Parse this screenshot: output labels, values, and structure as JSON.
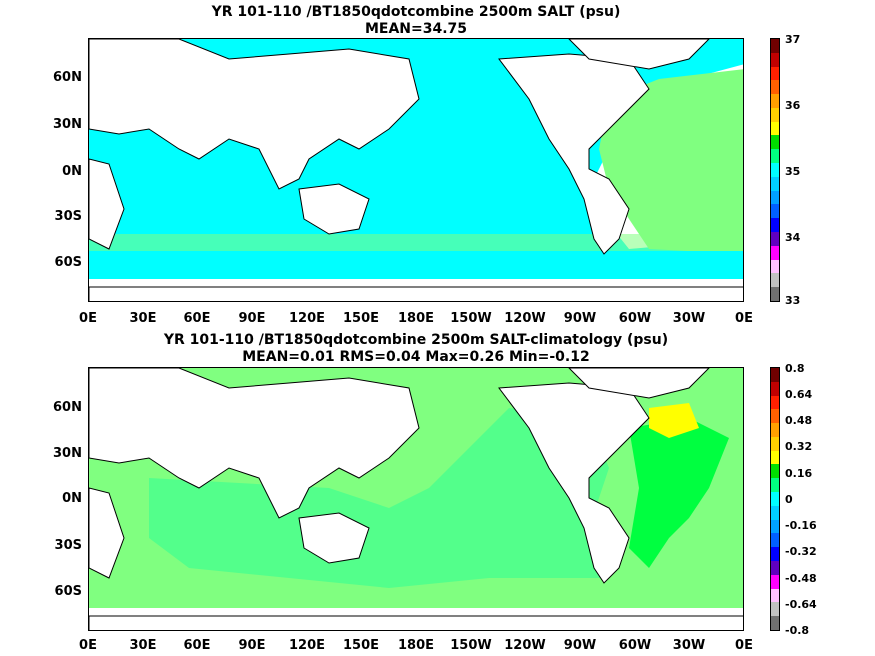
{
  "top": {
    "title_line1": "YR 101-110 /BT1850qdotcombine 2500m SALT (psu)",
    "title_line2": "MEAN=34.75",
    "colorbar_labels": [
      "37",
      "36",
      "35",
      "34",
      "33"
    ]
  },
  "bottom": {
    "title_line1": "YR 101-110 /BT1850qdotcombine 2500m SALT-climatology (psu)",
    "title_line2": "MEAN=0.01   RMS=0.04   Max=0.26   Min=-0.12",
    "colorbar_labels": [
      "0.8",
      "0.64",
      "0.48",
      "0.32",
      "0.16",
      "0",
      "-0.16",
      "-0.32",
      "-0.48",
      "-0.64",
      "-0.8"
    ]
  },
  "lat_labels": [
    "60N",
    "30N",
    "0N",
    "30S",
    "60S"
  ],
  "lon_labels": [
    "0E",
    "30E",
    "60E",
    "90E",
    "120E",
    "150E",
    "180E",
    "150W",
    "120W",
    "90W",
    "60W",
    "30W",
    "0E"
  ],
  "colors": {
    "cyan": "#00ffff",
    "green_light": "#80ff80",
    "green": "#00ff40",
    "yellow": "#ffff00",
    "colorbar": [
      "#700000",
      "#c00000",
      "#ff2000",
      "#ff6000",
      "#ffa000",
      "#ffd000",
      "#ffff00",
      "#00e000",
      "#00ff80",
      "#00ffff",
      "#00d0ff",
      "#00a0ff",
      "#0060ff",
      "#0000ff",
      "#6000c0",
      "#ff00ff",
      "#ffc0ff",
      "#c0c0c0",
      "#707070"
    ]
  }
}
